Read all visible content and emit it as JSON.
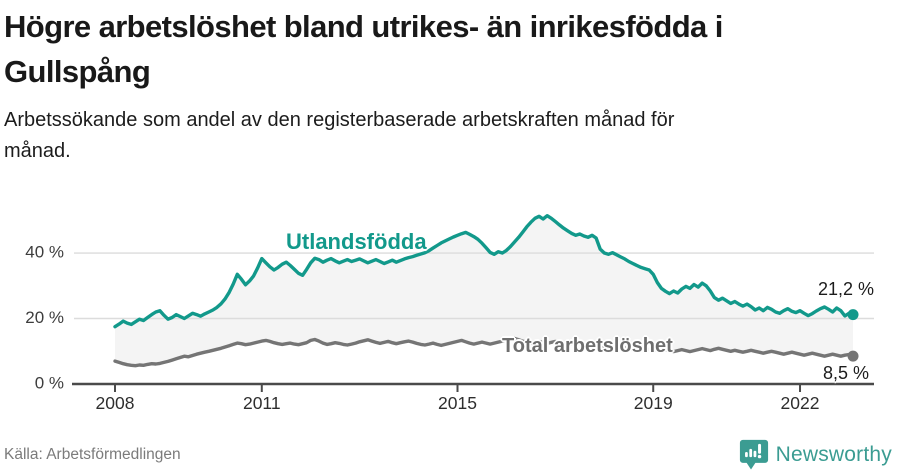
{
  "header": {
    "title": "Högre arbetslöshet bland utrikes- än inrikesfödda i Gullspång",
    "subtitle": "Arbetssökande som andel av den registerbaserade arbetskraften månad för månad."
  },
  "footer": {
    "source": "Källa: Arbetsförmedlingen",
    "brand": "Newsworthy",
    "brand_color": "#3b9c92"
  },
  "chart_data": {
    "type": "line",
    "title": "Högre arbetslöshet bland utrikes- än inrikesfödda i Gullspång",
    "subtitle": "Arbetssökande som andel av den registerbaserade arbetskraften månad för månad.",
    "source": "Källa: Arbetsförmedlingen",
    "x_unit": "monthly, Jan 2008 – Feb 2023",
    "x_start_year": 2008,
    "x_step_months": 1,
    "xticks": [
      2008,
      2011,
      2015,
      2019,
      2022
    ],
    "yticks": [
      {
        "value": 0,
        "label": "0 %"
      },
      {
        "value": 20,
        "label": "20 %"
      },
      {
        "value": 40,
        "label": "40 %"
      }
    ],
    "ylim": [
      0,
      56
    ],
    "grid": "horizontal",
    "legend_position": "inline-labels",
    "colors": {
      "grid": "#dcdcdc",
      "axis": "#4a4a4a",
      "tick_text": "#2e2e2e",
      "fill_between": "#f4f4f4"
    },
    "series": [
      {
        "name": "Utlandsfödda",
        "color": "#12998b",
        "end_label": "21,2 %",
        "end_value": 21.2,
        "values": [
          17.5,
          18.3,
          19.2,
          18.6,
          18.2,
          19.0,
          19.8,
          19.4,
          20.3,
          21.2,
          22.0,
          22.4,
          21.0,
          19.8,
          20.3,
          21.2,
          20.6,
          20.0,
          20.8,
          21.6,
          21.2,
          20.7,
          21.4,
          22.0,
          22.6,
          23.4,
          24.5,
          26.0,
          28.0,
          30.5,
          33.5,
          32.0,
          30.3,
          31.5,
          33.0,
          35.5,
          38.3,
          37.0,
          35.8,
          34.8,
          35.6,
          36.6,
          37.2,
          36.2,
          35.0,
          33.8,
          33.2,
          35.0,
          37.0,
          38.4,
          38.0,
          37.2,
          37.8,
          38.3,
          37.6,
          37.0,
          37.5,
          38.0,
          37.4,
          37.8,
          38.2,
          37.6,
          37.0,
          37.5,
          38.0,
          37.4,
          36.8,
          37.3,
          37.8,
          37.2,
          37.7,
          38.2,
          38.6,
          38.9,
          39.3,
          39.7,
          40.1,
          40.7,
          41.5,
          42.3,
          43.1,
          43.7,
          44.3,
          44.9,
          45.4,
          45.9,
          46.3,
          45.7,
          45.0,
          44.2,
          43.0,
          41.6,
          40.2,
          39.6,
          40.4,
          40.0,
          40.8,
          42.0,
          43.4,
          44.8,
          46.4,
          48.0,
          49.4,
          50.6,
          51.2,
          50.4,
          51.4,
          50.6,
          49.6,
          48.6,
          47.6,
          46.8,
          46.0,
          45.4,
          45.8,
          45.2,
          44.8,
          45.4,
          44.6,
          41.2,
          40.0,
          39.6,
          40.1,
          39.5,
          38.8,
          38.2,
          37.4,
          36.8,
          36.2,
          35.6,
          35.2,
          34.8,
          33.5,
          31.0,
          29.2,
          28.3,
          27.6,
          28.4,
          27.8,
          29.0,
          29.8,
          29.2,
          30.4,
          29.6,
          30.8,
          30.0,
          28.4,
          26.4,
          25.6,
          26.2,
          25.4,
          24.6,
          25.2,
          24.4,
          23.8,
          24.4,
          23.6,
          22.6,
          23.2,
          22.4,
          23.4,
          22.8,
          22.0,
          21.6,
          22.4,
          23.0,
          22.2,
          21.8,
          22.4,
          21.6,
          20.9,
          21.5,
          22.3,
          23.0,
          23.5,
          22.8,
          22.0,
          23.2,
          22.4,
          20.8,
          21.6,
          21.2
        ]
      },
      {
        "name": "Total arbetslöshet",
        "color": "#757575",
        "end_label": "8,5 %",
        "end_value": 8.5,
        "values": [
          7.0,
          6.6,
          6.2,
          5.9,
          5.7,
          5.6,
          5.8,
          5.7,
          6.0,
          6.2,
          6.1,
          6.3,
          6.6,
          6.9,
          7.3,
          7.7,
          8.1,
          8.5,
          8.3,
          8.7,
          9.1,
          9.4,
          9.7,
          10.0,
          10.3,
          10.6,
          10.9,
          11.3,
          11.7,
          12.1,
          12.5,
          12.3,
          12.0,
          12.2,
          12.5,
          12.8,
          13.1,
          13.3,
          13.0,
          12.6,
          12.3,
          12.1,
          12.3,
          12.5,
          12.2,
          12.0,
          12.3,
          12.6,
          13.3,
          13.6,
          13.1,
          12.5,
          12.1,
          12.3,
          12.6,
          12.4,
          12.1,
          11.9,
          12.2,
          12.5,
          12.9,
          13.2,
          13.5,
          13.1,
          12.7,
          12.4,
          12.7,
          13.0,
          12.6,
          12.3,
          12.6,
          12.9,
          13.1,
          12.8,
          12.4,
          12.1,
          11.9,
          12.2,
          12.5,
          12.1,
          11.8,
          12.1,
          12.4,
          12.7,
          13.0,
          13.3,
          12.9,
          12.5,
          12.2,
          12.5,
          12.8,
          12.5,
          12.2,
          12.5,
          12.8,
          13.1,
          13.4,
          13.7,
          13.9,
          13.5,
          13.1,
          12.7,
          12.4,
          12.7,
          13.0,
          12.7,
          12.4,
          12.7,
          13.0,
          12.7,
          12.3,
          12.0,
          12.3,
          12.6,
          12.3,
          12.0,
          11.7,
          12.0,
          12.3,
          11.9,
          11.5,
          11.2,
          10.9,
          11.2,
          11.5,
          11.1,
          10.8,
          10.5,
          10.8,
          11.1,
          10.8,
          10.5,
          10.2,
          10.5,
          10.8,
          10.5,
          10.2,
          9.9,
          10.2,
          10.5,
          10.2,
          9.9,
          10.2,
          10.5,
          10.8,
          10.5,
          10.2,
          10.6,
          10.9,
          10.6,
          10.3,
          10.0,
          10.3,
          10.0,
          9.7,
          10.0,
          10.3,
          10.0,
          9.7,
          9.4,
          9.7,
          10.0,
          9.7,
          9.4,
          9.1,
          9.4,
          9.7,
          9.4,
          9.1,
          8.8,
          9.1,
          9.4,
          9.1,
          8.8,
          8.5,
          8.8,
          9.1,
          8.8,
          8.5,
          8.8,
          9.0,
          8.5
        ]
      }
    ],
    "fill_between": {
      "upper": "Utlandsfödda",
      "lower": "Total arbetslöshet"
    }
  }
}
